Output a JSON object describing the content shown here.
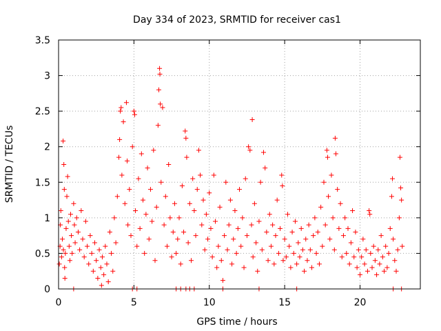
{
  "chart_data": {
    "type": "scatter",
    "title": "Day 334 of 2023, SRMTID for receiver cas1",
    "xlabel": "GPS time / hours",
    "ylabel": "SRMTID / TECUs",
    "xlim": [
      0,
      24
    ],
    "ylim": [
      0,
      3.5
    ],
    "grid": true,
    "marker": "+",
    "x_ticks": [
      0,
      5,
      10,
      15,
      20
    ],
    "x_tick_labels": [
      "0",
      "5",
      "10",
      "15",
      "20"
    ],
    "y_ticks": [
      0,
      0.5,
      1,
      1.5,
      2,
      2.5,
      3,
      3.5
    ],
    "y_tick_labels": [
      "0",
      "0.5",
      "1",
      "1.5",
      "2",
      "2.5",
      "3",
      "3.5"
    ],
    "series": [
      {
        "name": "SRMTID",
        "color": "#ff0000",
        "points": [
          [
            0.05,
            0.35
          ],
          [
            0.1,
            0.6
          ],
          [
            0.12,
            0.9
          ],
          [
            0.15,
            1.1
          ],
          [
            0.2,
            0.45
          ],
          [
            0.25,
            0.7
          ],
          [
            0.3,
            2.08
          ],
          [
            0.32,
            0.55
          ],
          [
            0.35,
            1.75
          ],
          [
            0.38,
            1.4
          ],
          [
            0.4,
            0.3
          ],
          [
            0.42,
            0.15
          ],
          [
            0.45,
            0.5
          ],
          [
            0.5,
            0.85
          ],
          [
            0.55,
            1.3
          ],
          [
            0.6,
            1.58
          ],
          [
            0.65,
            0.95
          ],
          [
            0.7,
            0.6
          ],
          [
            0.75,
            0.4
          ],
          [
            0.8,
            1.05
          ],
          [
            0.85,
            0.75
          ],
          [
            0.9,
            0.5
          ],
          [
            1.0,
            1.2
          ],
          [
            1.05,
            0.9
          ],
          [
            1.1,
            0.65
          ],
          [
            1.2,
            1.0
          ],
          [
            1.3,
            0.8
          ],
          [
            1.4,
            0.55
          ],
          [
            1.5,
            1.1
          ],
          [
            1.6,
            0.7
          ],
          [
            1.7,
            0.45
          ],
          [
            1.8,
            0.95
          ],
          [
            1.9,
            0.6
          ],
          [
            2.0,
            0.35
          ],
          [
            2.1,
            0.75
          ],
          [
            2.2,
            0.5
          ],
          [
            2.3,
            0.25
          ],
          [
            2.4,
            0.65
          ],
          [
            2.5,
            0.4
          ],
          [
            2.6,
            0.15
          ],
          [
            2.7,
            0.55
          ],
          [
            2.8,
            0.3
          ],
          [
            2.85,
            0.05
          ],
          [
            2.9,
            0.45
          ],
          [
            3.0,
            0.2
          ],
          [
            3.1,
            0.6
          ],
          [
            3.2,
            0.35
          ],
          [
            3.3,
            0.1
          ],
          [
            3.4,
            0.8
          ],
          [
            3.5,
            0.5
          ],
          [
            3.6,
            0.25
          ],
          [
            3.7,
            1.0
          ],
          [
            3.8,
            0.65
          ],
          [
            3.9,
            1.3
          ],
          [
            4.0,
            1.85
          ],
          [
            4.05,
            2.1
          ],
          [
            4.1,
            2.5
          ],
          [
            4.15,
            2.55
          ],
          [
            4.2,
            1.6
          ],
          [
            4.3,
            2.35
          ],
          [
            4.4,
            1.2
          ],
          [
            4.5,
            2.62
          ],
          [
            4.55,
            1.8
          ],
          [
            4.6,
            0.9
          ],
          [
            4.7,
            1.4
          ],
          [
            4.8,
            0.75
          ],
          [
            4.9,
            2.0
          ],
          [
            5.0,
            2.5
          ],
          [
            5.05,
            2.45
          ],
          [
            5.1,
            1.1
          ],
          [
            5.2,
            0.6
          ],
          [
            5.3,
            1.55
          ],
          [
            5.4,
            0.85
          ],
          [
            5.5,
            1.9
          ],
          [
            5.6,
            1.25
          ],
          [
            5.7,
            0.5
          ],
          [
            5.8,
            1.05
          ],
          [
            5.9,
            1.7
          ],
          [
            6.0,
            0.7
          ],
          [
            6.1,
            1.4
          ],
          [
            6.2,
            0.95
          ],
          [
            6.3,
            1.95
          ],
          [
            6.4,
            0.4
          ],
          [
            6.5,
            1.15
          ],
          [
            6.6,
            2.3
          ],
          [
            6.65,
            2.8
          ],
          [
            6.7,
            3.1
          ],
          [
            6.72,
            3.02
          ],
          [
            6.75,
            2.6
          ],
          [
            6.8,
            1.5
          ],
          [
            6.9,
            2.55
          ],
          [
            7.0,
            0.9
          ],
          [
            7.1,
            1.3
          ],
          [
            7.2,
            0.6
          ],
          [
            7.3,
            1.75
          ],
          [
            7.4,
            1.0
          ],
          [
            7.5,
            0.45
          ],
          [
            7.6,
            0.8
          ],
          [
            7.7,
            1.2
          ],
          [
            7.8,
            0.5
          ],
          [
            7.9,
            0.7
          ],
          [
            8.0,
            1.0
          ],
          [
            8.1,
            0.35
          ],
          [
            8.2,
            1.45
          ],
          [
            8.3,
            0.8
          ],
          [
            8.4,
            2.22
          ],
          [
            8.45,
            2.12
          ],
          [
            8.5,
            1.85
          ],
          [
            8.6,
            0.65
          ],
          [
            8.7,
            1.2
          ],
          [
            8.8,
            0.4
          ],
          [
            8.9,
            1.55
          ],
          [
            9.0,
            1.1
          ],
          [
            9.1,
            0.75
          ],
          [
            9.2,
            1.4
          ],
          [
            9.3,
            1.95
          ],
          [
            9.4,
            1.6
          ],
          [
            9.5,
            0.9
          ],
          [
            9.6,
            1.25
          ],
          [
            9.7,
            0.55
          ],
          [
            9.8,
            1.05
          ],
          [
            9.9,
            0.7
          ],
          [
            10.0,
            1.35
          ],
          [
            10.1,
            0.85
          ],
          [
            10.2,
            0.45
          ],
          [
            10.3,
            1.6
          ],
          [
            10.4,
            0.95
          ],
          [
            10.5,
            0.3
          ],
          [
            10.6,
            0.6
          ],
          [
            10.7,
            1.15
          ],
          [
            10.8,
            0.4
          ],
          [
            10.9,
            0.12
          ],
          [
            11.0,
            0.75
          ],
          [
            11.1,
            1.5
          ],
          [
            11.2,
            0.55
          ],
          [
            11.3,
            0.9
          ],
          [
            11.4,
            1.25
          ],
          [
            11.5,
            0.35
          ],
          [
            11.6,
            0.7
          ],
          [
            11.7,
            1.1
          ],
          [
            11.8,
            0.5
          ],
          [
            11.9,
            0.85
          ],
          [
            12.0,
            1.4
          ],
          [
            12.1,
            0.6
          ],
          [
            12.2,
            1.0
          ],
          [
            12.3,
            0.3
          ],
          [
            12.4,
            1.55
          ],
          [
            12.5,
            0.75
          ],
          [
            12.6,
            2.0
          ],
          [
            12.7,
            1.95
          ],
          [
            12.8,
            0.9
          ],
          [
            12.85,
            2.38
          ],
          [
            12.9,
            0.45
          ],
          [
            13.0,
            1.2
          ],
          [
            13.1,
            0.65
          ],
          [
            13.2,
            0.25
          ],
          [
            13.3,
            0.95
          ],
          [
            13.4,
            1.5
          ],
          [
            13.5,
            0.55
          ],
          [
            13.6,
            1.92
          ],
          [
            13.7,
            1.7
          ],
          [
            13.8,
            0.8
          ],
          [
            13.9,
            0.4
          ],
          [
            14.0,
            1.05
          ],
          [
            14.1,
            0.6
          ],
          [
            14.2,
            0.9
          ],
          [
            14.3,
            0.35
          ],
          [
            14.4,
            0.75
          ],
          [
            14.5,
            1.25
          ],
          [
            14.6,
            0.5
          ],
          [
            14.7,
            0.85
          ],
          [
            14.8,
            1.6
          ],
          [
            14.85,
            1.45
          ],
          [
            14.9,
            0.4
          ],
          [
            15.0,
            0.7
          ],
          [
            15.1,
            0.45
          ],
          [
            15.2,
            1.05
          ],
          [
            15.3,
            0.6
          ],
          [
            15.4,
            0.3
          ],
          [
            15.5,
            0.8
          ],
          [
            15.6,
            0.5
          ],
          [
            15.7,
            0.95
          ],
          [
            15.8,
            0.35
          ],
          [
            15.9,
            0.65
          ],
          [
            16.0,
            0.45
          ],
          [
            16.1,
            0.85
          ],
          [
            16.2,
            0.55
          ],
          [
            16.3,
            0.25
          ],
          [
            16.4,
            0.7
          ],
          [
            16.5,
            0.4
          ],
          [
            16.6,
            0.9
          ],
          [
            16.7,
            0.55
          ],
          [
            16.8,
            0.3
          ],
          [
            16.9,
            0.75
          ],
          [
            17.0,
            1.0
          ],
          [
            17.1,
            0.5
          ],
          [
            17.2,
            0.8
          ],
          [
            17.3,
            0.35
          ],
          [
            17.4,
            1.15
          ],
          [
            17.5,
            0.6
          ],
          [
            17.6,
            1.5
          ],
          [
            17.7,
            0.9
          ],
          [
            17.8,
            1.95
          ],
          [
            17.85,
            1.85
          ],
          [
            17.9,
            1.3
          ],
          [
            18.0,
            0.7
          ],
          [
            18.1,
            1.6
          ],
          [
            18.2,
            1.0
          ],
          [
            18.3,
            0.55
          ],
          [
            18.35,
            2.12
          ],
          [
            18.4,
            1.9
          ],
          [
            18.5,
            1.4
          ],
          [
            18.6,
            0.85
          ],
          [
            18.7,
            1.2
          ],
          [
            18.8,
            0.45
          ],
          [
            18.9,
            0.75
          ],
          [
            19.0,
            1.0
          ],
          [
            19.1,
            0.5
          ],
          [
            19.2,
            0.85
          ],
          [
            19.3,
            0.35
          ],
          [
            19.4,
            0.65
          ],
          [
            19.5,
            1.1
          ],
          [
            19.6,
            0.45
          ],
          [
            19.7,
            0.8
          ],
          [
            19.8,
            0.3
          ],
          [
            19.9,
            0.55
          ],
          [
            20.0,
            0.2
          ],
          [
            20.1,
            0.45
          ],
          [
            20.2,
            0.7
          ],
          [
            20.3,
            0.35
          ],
          [
            20.4,
            0.55
          ],
          [
            20.5,
            0.25
          ],
          [
            20.6,
            1.1
          ],
          [
            20.65,
            1.05
          ],
          [
            20.7,
            0.5
          ],
          [
            20.8,
            0.3
          ],
          [
            20.9,
            0.6
          ],
          [
            21.0,
            0.4
          ],
          [
            21.1,
            0.2
          ],
          [
            21.2,
            0.55
          ],
          [
            21.3,
            0.35
          ],
          [
            21.4,
            0.75
          ],
          [
            21.5,
            0.45
          ],
          [
            21.6,
            0.25
          ],
          [
            21.7,
            0.6
          ],
          [
            21.8,
            0.3
          ],
          [
            21.9,
            0.5
          ],
          [
            22.0,
            0.85
          ],
          [
            22.1,
            1.3
          ],
          [
            22.15,
            1.55
          ],
          [
            22.2,
            0.7
          ],
          [
            22.3,
            0.4
          ],
          [
            22.4,
            0.25
          ],
          [
            22.5,
            0.55
          ],
          [
            22.6,
            1.0
          ],
          [
            22.65,
            1.85
          ],
          [
            22.7,
            1.42
          ],
          [
            22.75,
            1.25
          ],
          [
            22.8,
            0.6
          ]
        ],
        "zero_points_x": [
          1.0,
          4.9,
          5.2,
          7.8,
          8.1,
          8.45,
          8.7,
          9.0,
          10.9,
          13.3,
          15.8,
          22.2,
          22.75
        ]
      }
    ]
  }
}
